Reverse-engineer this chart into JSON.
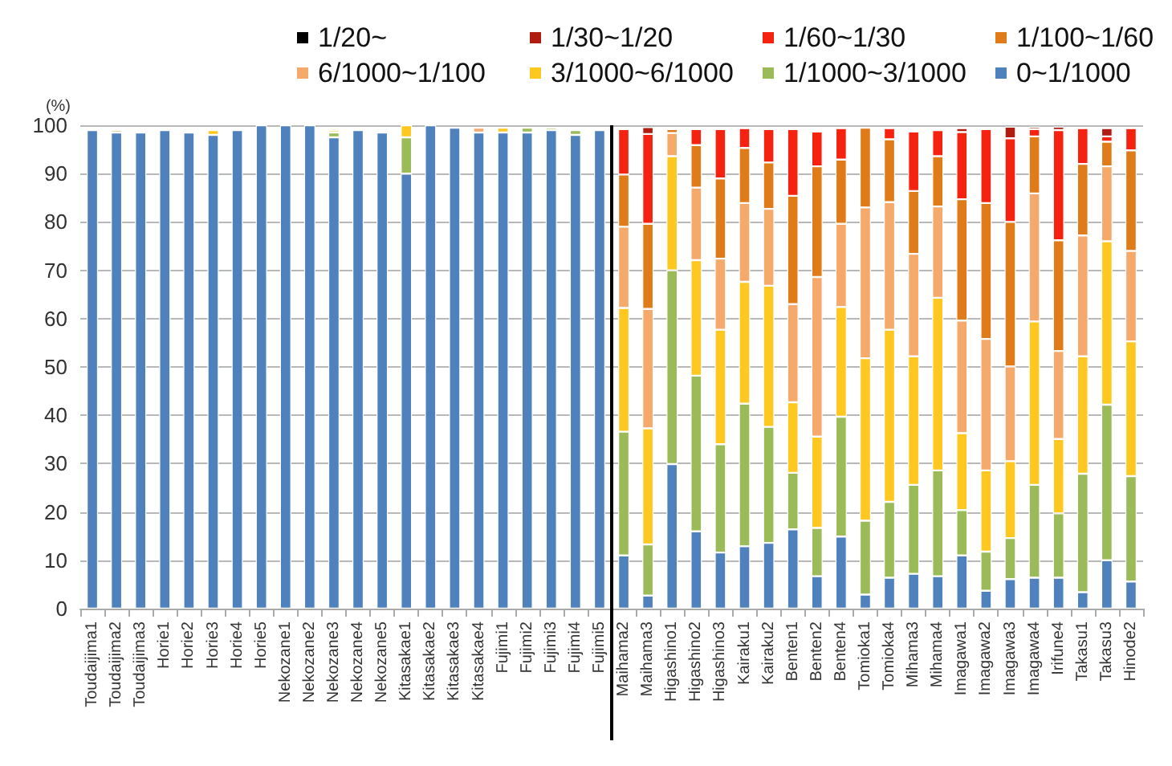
{
  "chart_data": {
    "type": "bar",
    "stacked": true,
    "ylabel": "(%)",
    "categories": [
      "Toudaijima1",
      "Toudaijima2",
      "Toudaijima3",
      "Horie1",
      "Horie2",
      "Horie3",
      "Horie4",
      "Horie5",
      "Nekozane1",
      "Nekozane2",
      "Nekozane3",
      "Nekozane4",
      "Nekozane5",
      "Kitasakae1",
      "Kitasakae2",
      "Kitasakae3",
      "Kitasakae4",
      "Fujimi1",
      "Fujimi2",
      "Fujimi3",
      "Fujimi4",
      "Fujimi5",
      "Maihama2",
      "Maihama3",
      "Higashino1",
      "Higashino2",
      "Higashino3",
      "Kairaku1",
      "Kairaku2",
      "Benten1",
      "Benten2",
      "Benten4",
      "Tomioka1",
      "Tomioka4",
      "Mihama3",
      "Mihama4",
      "Imagawa1",
      "Imagawa2",
      "Imagawa3",
      "Imagawa4",
      "Irifune4",
      "Takasu1",
      "Takasu3",
      "Hinode2"
    ],
    "series": [
      {
        "name": "0~1/1000",
        "color": "#4f81bd",
        "values": [
          99,
          98.5,
          98.5,
          99,
          98.5,
          98,
          99,
          100,
          100,
          100,
          97.5,
          99,
          98.5,
          90,
          100,
          99.5,
          98.5,
          98.5,
          98.5,
          99,
          98,
          99,
          11,
          2.7,
          29.9,
          16,
          11.6,
          12.9,
          13.6,
          16.4,
          6.7,
          14.9,
          2.9,
          6.4,
          7.2,
          6.7,
          11,
          3.7,
          6.1,
          6.4,
          6.4,
          3.4,
          10,
          5.6
        ]
      },
      {
        "name": "1/1000~3/1000",
        "color": "#9bbb59",
        "values": [
          null,
          0.5,
          null,
          null,
          null,
          null,
          null,
          null,
          null,
          null,
          1,
          null,
          null,
          7.5,
          null,
          null,
          null,
          null,
          1,
          0.5,
          1,
          null,
          25.6,
          10.6,
          40.1,
          32.2,
          22.4,
          29.5,
          24,
          11.7,
          10,
          24.8,
          15.3,
          15.7,
          18.4,
          21.9,
          9.4,
          8.1,
          8.5,
          19.2,
          13.3,
          24.5,
          32.2,
          21.8
        ]
      },
      {
        "name": "3/1000~6/1000",
        "color": "#ffc820",
        "values": [
          null,
          null,
          null,
          null,
          null,
          1,
          null,
          null,
          null,
          null,
          0.5,
          null,
          null,
          2.5,
          null,
          null,
          null,
          1,
          null,
          null,
          null,
          null,
          25.6,
          24,
          23.6,
          23.9,
          23.7,
          25.2,
          29.2,
          14.6,
          18.9,
          22.7,
          33.6,
          35.6,
          26.6,
          35.7,
          15.9,
          16.8,
          15.9,
          33.8,
          15.4,
          24.3,
          33.8,
          27.9
        ]
      },
      {
        "name": "6/1000~1/100",
        "color": "#f5a96b",
        "values": [
          null,
          null,
          null,
          null,
          null,
          null,
          null,
          null,
          null,
          null,
          null,
          null,
          null,
          null,
          null,
          null,
          1,
          null,
          null,
          null,
          null,
          null,
          16.8,
          24.7,
          4.8,
          15,
          14.7,
          16.3,
          15.9,
          20.3,
          33,
          17.2,
          31.2,
          26.4,
          21.2,
          18.9,
          23.3,
          27.2,
          19.6,
          26.5,
          18.2,
          25,
          15.5,
          18.7
        ]
      },
      {
        "name": "1/100~1/60",
        "color": "#e07b1a",
        "values": [
          null,
          null,
          null,
          null,
          null,
          null,
          null,
          null,
          null,
          null,
          null,
          null,
          null,
          null,
          null,
          null,
          null,
          null,
          null,
          null,
          null,
          null,
          10.8,
          17.6,
          0.8,
          8.8,
          16.6,
          11.4,
          9.6,
          22.4,
          22.9,
          13.3,
          16.5,
          13,
          13,
          10.4,
          25.1,
          28.1,
          29.9,
          11.8,
          22.9,
          14.8,
          5.1,
          20.8
        ]
      },
      {
        "name": "1/60~1/30",
        "color": "#f5220f",
        "values": [
          null,
          null,
          null,
          null,
          null,
          null,
          null,
          null,
          null,
          null,
          null,
          null,
          null,
          null,
          null,
          null,
          null,
          null,
          null,
          null,
          null,
          null,
          9.4,
          18.6,
          null,
          3.3,
          10.2,
          4.1,
          6.9,
          13.8,
          7.2,
          6.5,
          null,
          2.3,
          12.3,
          5.4,
          13.9,
          15.3,
          17.3,
          1.5,
          22.8,
          7.4,
          1.1,
          4.6
        ]
      },
      {
        "name": "1/30~1/20",
        "color": "#b01c10",
        "values": [
          null,
          null,
          null,
          null,
          null,
          null,
          null,
          null,
          null,
          null,
          null,
          null,
          null,
          null,
          null,
          null,
          null,
          null,
          null,
          null,
          null,
          null,
          null,
          1.4,
          null,
          null,
          null,
          null,
          null,
          null,
          null,
          null,
          null,
          null,
          null,
          null,
          0.8,
          null,
          2.4,
          0.5,
          0.7,
          null,
          1.7,
          null
        ]
      },
      {
        "name": "1/20~",
        "color": "#000000",
        "values": [
          null,
          null,
          null,
          null,
          null,
          null,
          null,
          null,
          null,
          null,
          null,
          null,
          null,
          null,
          null,
          null,
          null,
          null,
          null,
          null,
          null,
          null,
          null,
          null,
          null,
          null,
          null,
          null,
          null,
          null,
          null,
          null,
          null,
          null,
          null,
          null,
          null,
          null,
          null,
          null,
          null,
          null,
          null,
          null
        ]
      }
    ],
    "ylim": [
      0,
      100
    ],
    "yticks": [
      0,
      10,
      20,
      30,
      40,
      50,
      60,
      70,
      80,
      90,
      100
    ],
    "grid": "y",
    "legend": "top",
    "ref_lines": [
      {
        "axis": "x",
        "value": "Maihama2",
        "color": "#000000"
      }
    ]
  }
}
